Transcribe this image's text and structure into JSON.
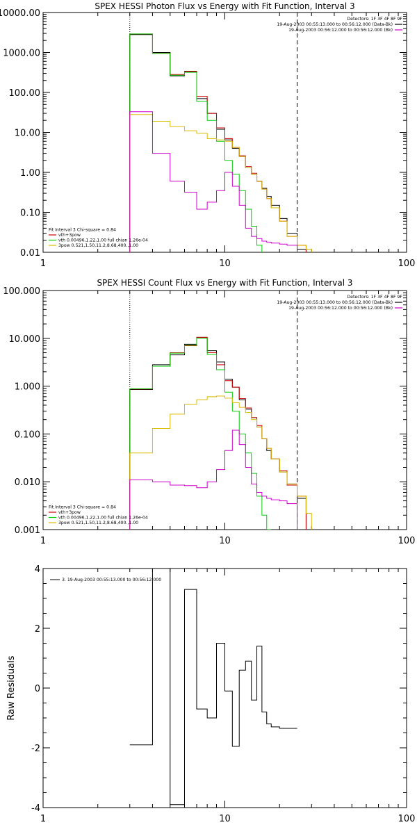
{
  "chart_data": [
    {
      "type": "line",
      "step": true,
      "title": "SPEX HESSI Photon Flux vs Energy with Fit Function, Interval 3",
      "xlabel": "",
      "ylabel": "",
      "xscale": "log",
      "yscale": "log",
      "xlim": [
        1,
        100
      ],
      "ylim": [
        0.01,
        10000
      ],
      "xticks": [
        "1",
        "10",
        "100"
      ],
      "yticks": [
        "10000.00",
        "1000.00",
        "100.00",
        "10.00",
        "1.00",
        "0.10",
        "0.01"
      ],
      "vlines": [
        {
          "x": 3,
          "style": "dotted"
        },
        {
          "x": 25,
          "style": "dashed"
        }
      ],
      "legend_top": [
        "Detectors: 1F 3F 4F 8F 9F",
        "19-Aug-2003 00:55:13.000 to 00:56:12.000 (Data-Bk)",
        "19-Aug-2003 00:56:12.000 to 00:56:12.000 (Bk)"
      ],
      "legend_top_colors": [
        "",
        "#000000",
        "#cc00cc"
      ],
      "legend_bottom": [
        "Fit Interval 3   Chi-square = 0.84",
        "vth+3pow",
        "vth 0.00496,1.22,1.00  full chian 1.26e-04",
        "3pow 0.521,1.50,11.2,8.68,400.,1.00"
      ],
      "legend_bottom_colors": [
        "",
        "#cc0000",
        "#00cc00",
        "#ddbb00"
      ],
      "edges": [
        3,
        4,
        5,
        6,
        7,
        8,
        9,
        10,
        11,
        12,
        13,
        14,
        15,
        16,
        17,
        18,
        20,
        22,
        25,
        28,
        30
      ],
      "series": [
        {
          "color": "#000000",
          "values": [
            2800,
            1000,
            260,
            330,
            70,
            30,
            12,
            6.5,
            4,
            2.5,
            1.3,
            0.9,
            0.6,
            0.4,
            0.25,
            0.15,
            0.07,
            0.03,
            0.012,
            null
          ]
        },
        {
          "color": "#cc0000",
          "values": [
            2900,
            950,
            280,
            340,
            80,
            30,
            13,
            7,
            4.2,
            2.6,
            1.4,
            0.95,
            0.6,
            0.38,
            0.22,
            0.13,
            0.06,
            0.025,
            0.015,
            null
          ]
        },
        {
          "color": "#00cc00",
          "values": [
            2900,
            940,
            270,
            320,
            60,
            20,
            6,
            2,
            0.9,
            0.35,
            0.12,
            0.045,
            0.015,
            null,
            null,
            null,
            null,
            null,
            null,
            null
          ]
        },
        {
          "color": "#ddbb00",
          "values": [
            28,
            19,
            14,
            11,
            9.5,
            7,
            6.5,
            6,
            4.2,
            2.5,
            1.3,
            0.9,
            0.6,
            0.38,
            0.22,
            0.13,
            0.06,
            0.025,
            0.015,
            0.012
          ]
        },
        {
          "color": "#cc00cc",
          "values": [
            33,
            3,
            0.6,
            0.32,
            0.12,
            0.18,
            0.35,
            1.0,
            0.45,
            0.15,
            0.04,
            0.025,
            0.022,
            0.019,
            0.018,
            0.017,
            0.016,
            0.015,
            null,
            null
          ]
        }
      ]
    },
    {
      "type": "line",
      "step": true,
      "title": "SPEX HESSI Count Flux vs Energy with Fit Function, Interval 3",
      "xlabel": "",
      "ylabel": "",
      "xscale": "log",
      "yscale": "log",
      "xlim": [
        1,
        100
      ],
      "ylim": [
        0.001,
        100
      ],
      "xticks": [
        "1",
        "10",
        "100"
      ],
      "yticks": [
        "100.000",
        "10.000",
        "1.000",
        "0.100",
        "0.010",
        "0.001"
      ],
      "vlines": [
        {
          "x": 3,
          "style": "dotted"
        },
        {
          "x": 25,
          "style": "dashed"
        }
      ],
      "legend_top": [
        "Detectors: 1F 3F 4F 8F 9F",
        "19-Aug-2003 00:55:13.000 to 00:56:12.000 (Data-Bk)",
        "19-Aug-2003 00:56:12.000 to 00:56:12.000 (Bk)"
      ],
      "legend_top_colors": [
        "",
        "#000000",
        "#cc00cc"
      ],
      "legend_bottom": [
        "Fit Interval 3   Chi-square = 0.84",
        "vth+3pow",
        "vth 0.00496,1.22,1.00  full chian 1.26e-04",
        "3pow 0.521,1.50,11.2,8.68,400.,1.00"
      ],
      "legend_bottom_colors": [
        "",
        "#cc0000",
        "#00cc00",
        "#ddbb00"
      ],
      "edges": [
        3,
        4,
        5,
        6,
        7,
        8,
        9,
        10,
        11,
        12,
        13,
        14,
        15,
        16,
        17,
        18,
        20,
        22,
        25,
        28,
        30
      ],
      "series": [
        {
          "color": "#000000",
          "values": [
            0.85,
            2.8,
            4.5,
            7.5,
            10.5,
            5.5,
            3.2,
            1.4,
            0.95,
            0.52,
            0.33,
            0.22,
            0.14,
            0.08,
            0.045,
            0.03,
            0.016,
            0.009,
            0.0045,
            null
          ]
        },
        {
          "color": "#cc0000",
          "values": [
            0.87,
            2.6,
            5.0,
            7.0,
            10.5,
            5.0,
            2.8,
            1.3,
            0.95,
            0.55,
            0.35,
            0.22,
            0.15,
            0.08,
            0.05,
            0.03,
            0.017,
            0.0085,
            0.005,
            null
          ]
        },
        {
          "color": "#00cc00",
          "values": [
            0.88,
            2.6,
            4.9,
            7.2,
            10.0,
            4.6,
            2.2,
            0.75,
            0.3,
            0.1,
            0.04,
            0.015,
            0.005,
            0.002,
            0.001,
            null,
            null,
            null,
            null,
            null
          ]
        },
        {
          "color": "#ddbb00",
          "values": [
            0.04,
            0.13,
            0.26,
            0.42,
            0.52,
            0.6,
            0.62,
            0.56,
            0.45,
            0.36,
            0.28,
            0.2,
            0.14,
            0.08,
            0.05,
            0.03,
            0.016,
            0.009,
            0.005,
            0.0022
          ]
        },
        {
          "color": "#cc00cc",
          "values": [
            0.011,
            0.01,
            0.0085,
            0.0083,
            0.0075,
            0.01,
            0.018,
            0.045,
            0.12,
            0.06,
            0.02,
            0.009,
            0.006,
            0.005,
            0.0045,
            0.0042,
            0.004,
            0.0035,
            null,
            null
          ]
        }
      ]
    },
    {
      "type": "line",
      "step": true,
      "title": "",
      "xlabel": "",
      "ylabel": "Raw Residuals",
      "xscale": "log",
      "yscale": "linear",
      "xlim": [
        1,
        100
      ],
      "ylim": [
        -4,
        4
      ],
      "xticks": [
        "1",
        "10",
        "100"
      ],
      "yticks": [
        "4",
        "2",
        "0",
        "-2",
        "-4"
      ],
      "legend_top": [
        "3. 19-Aug-2003 00:55:13.000 to 00:56:12.000"
      ],
      "legend_top_colors": [
        "#000000"
      ],
      "edges": [
        3,
        4,
        5,
        6,
        7,
        8,
        9,
        10,
        11,
        12,
        13,
        14,
        15,
        16,
        17,
        18,
        20,
        22,
        25
      ],
      "series": [
        {
          "color": "#000000",
          "values": [
            -1.9,
            4.0,
            -3.9,
            3.3,
            -0.7,
            -1.0,
            1.5,
            -0.1,
            -1.95,
            0.6,
            0.9,
            -0.4,
            1.4,
            -0.8,
            -1.2,
            -1.3,
            -1.35,
            -1.35
          ]
        }
      ]
    }
  ]
}
